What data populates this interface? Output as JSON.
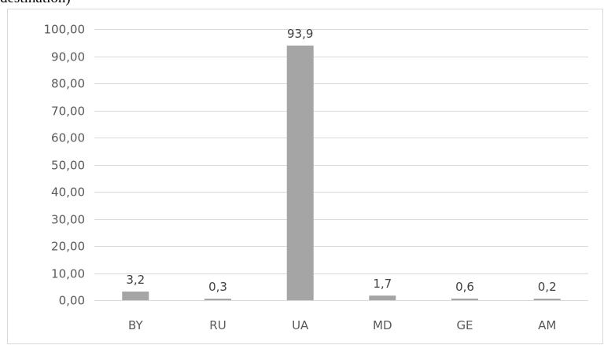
{
  "caption": "destination)",
  "colors": {
    "bar": "#a5a5a5",
    "grid": "#d9d9d9",
    "frame": "#d9d9d9",
    "tick_text": "#595959",
    "label_text": "#404040"
  },
  "chart_data": {
    "type": "bar",
    "title": "",
    "xlabel": "",
    "ylabel": "",
    "categories": [
      "BY",
      "RU",
      "UA",
      "MD",
      "GE",
      "AM"
    ],
    "values": [
      3.2,
      0.3,
      93.9,
      1.7,
      0.6,
      0.2
    ],
    "data_labels": [
      "3,2",
      "0,3",
      "93,9",
      "1,7",
      "0,6",
      "0,2"
    ],
    "ylim": [
      0,
      100
    ],
    "yticks": [
      0,
      10,
      20,
      30,
      40,
      50,
      60,
      70,
      80,
      90,
      100
    ],
    "ytick_labels": [
      "0,00",
      "10,00",
      "20,00",
      "30,00",
      "40,00",
      "50,00",
      "60,00",
      "70,00",
      "80,00",
      "90,00",
      "100,00"
    ],
    "grid": true,
    "legend": "none"
  }
}
